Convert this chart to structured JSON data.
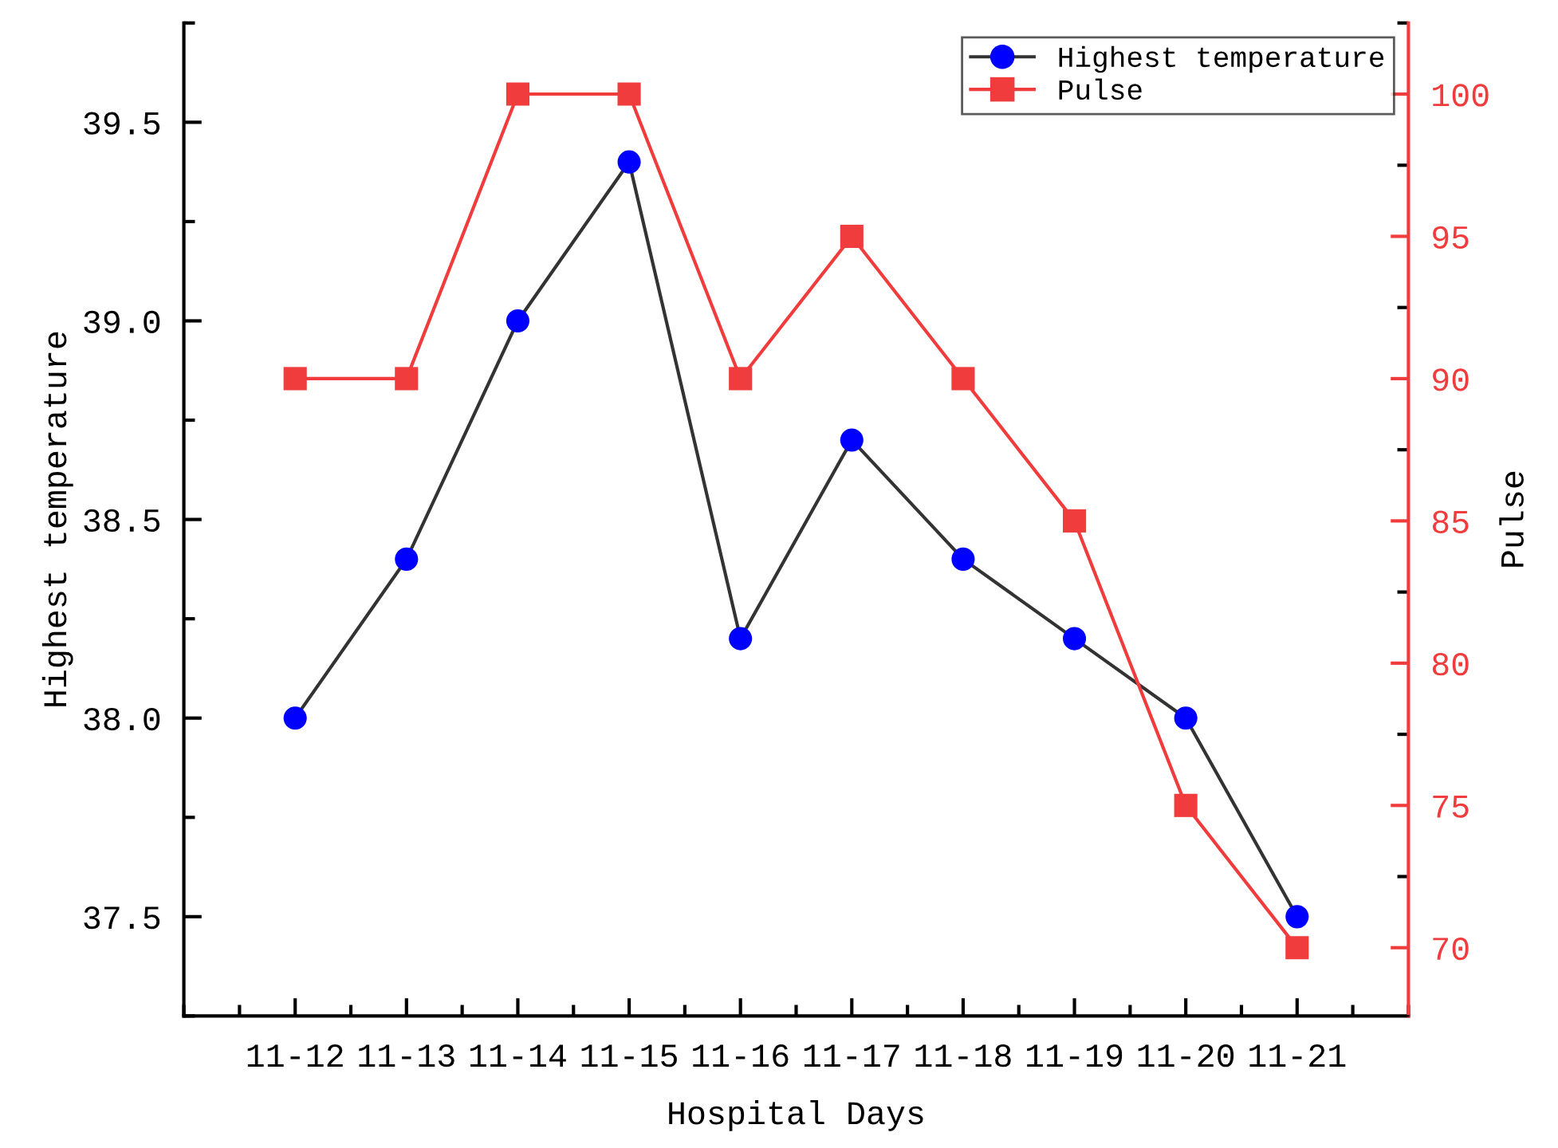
{
  "chart_data": {
    "type": "line",
    "xlabel": "Hospital Days",
    "ylabel": "Highest temperature",
    "y2label": "Pulse",
    "categories": [
      "11-12",
      "11-13",
      "11-14",
      "11-15",
      "11-16",
      "11-17",
      "11-18",
      "11-19",
      "11-20",
      "11-21"
    ],
    "series": [
      {
        "name": "Highest temperature",
        "color": "#333333",
        "colors": [
          "#0000ff",
          "#0000ff",
          "#0000ff",
          "#0000ff",
          "#0000ff",
          "#0000ff",
          "#0000ff",
          "#0000ff",
          "#0000ff",
          "#0000ff"
        ],
        "marker": "circle",
        "values": [
          38.0,
          38.4,
          39.0,
          39.4,
          38.2,
          38.7,
          38.4,
          38.2,
          38.0,
          37.5
        ]
      },
      {
        "name": "Pulse",
        "color": "#f03c3c",
        "marker": "square",
        "axis": "y2",
        "values": [
          90,
          90,
          100,
          100,
          90,
          95,
          90,
          85,
          75,
          70
        ]
      }
    ],
    "ylim": [
      37.25,
      39.75
    ],
    "yticks": [
      37.5,
      {
        "value": 38,
        "label": "38.0"
      },
      38.5,
      {
        "value": 39,
        "label": "39.0"
      },
      39.5
    ],
    "y2lim": [
      67.6,
      102.5
    ],
    "y2ticks": [
      70,
      75,
      80,
      85,
      90,
      95,
      100
    ],
    "legend": "top right",
    "grid": false,
    "line_style": "solid"
  }
}
